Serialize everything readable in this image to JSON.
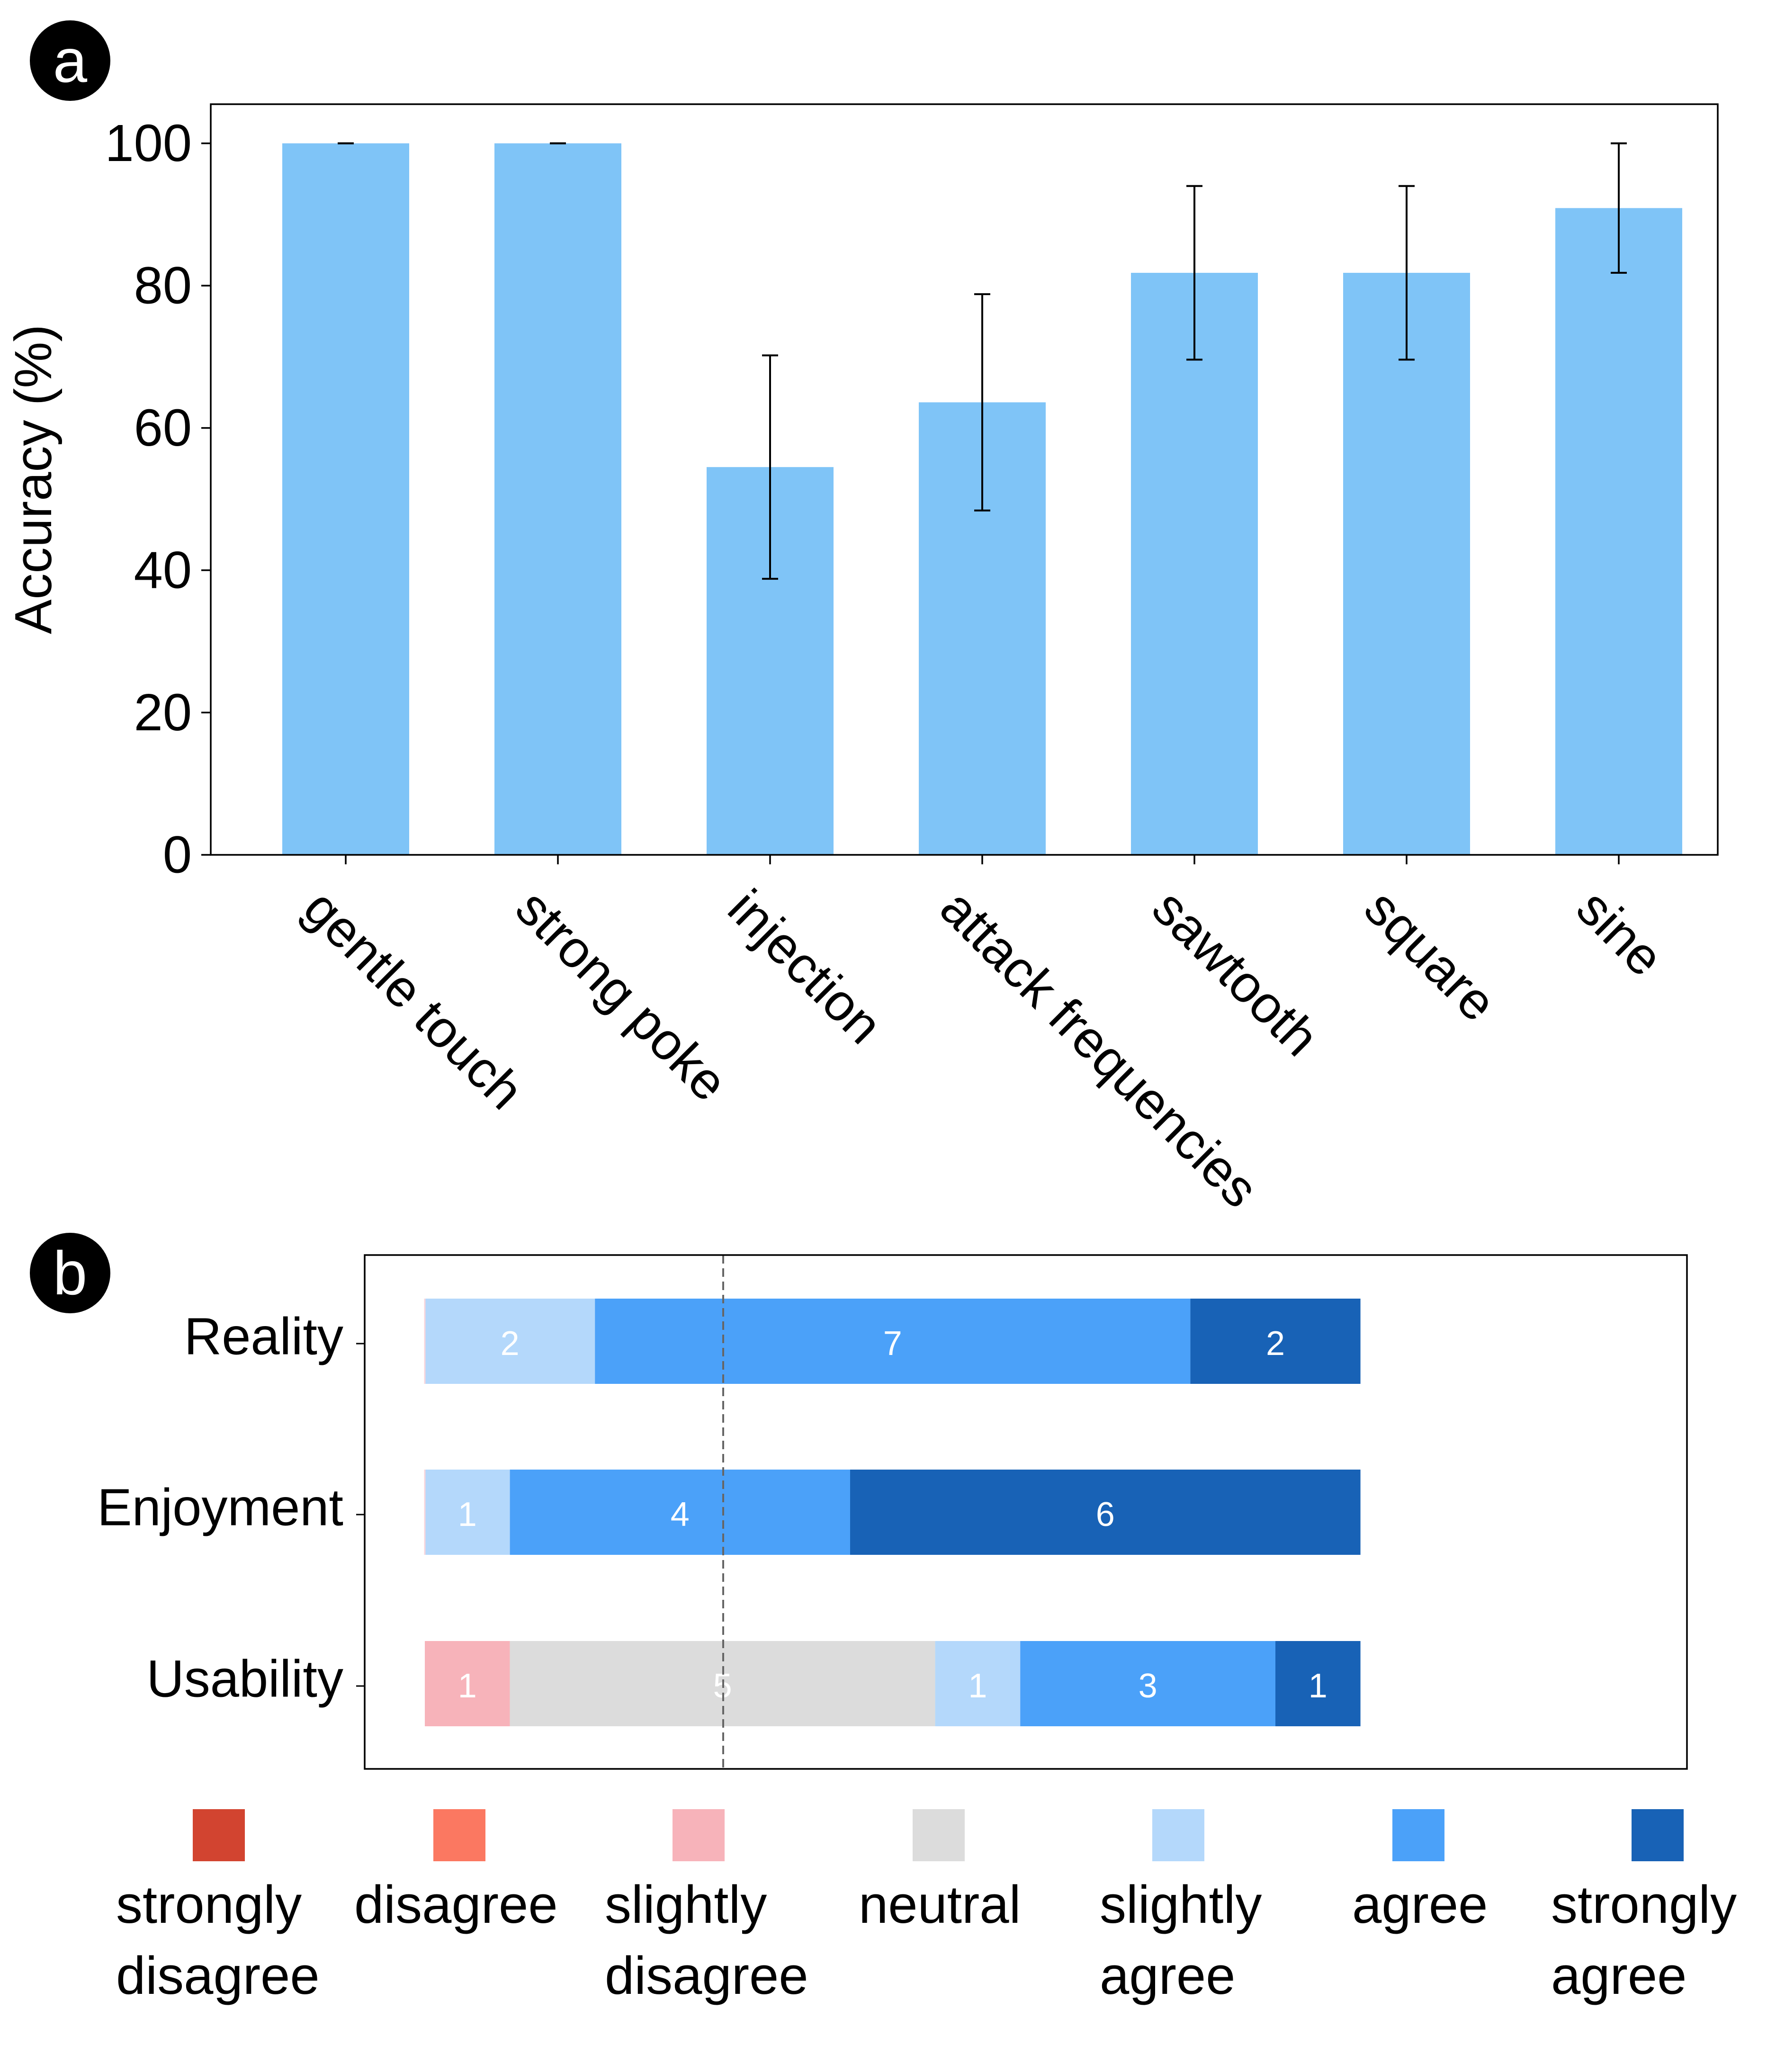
{
  "panels": {
    "a": {
      "label": "a"
    },
    "b": {
      "label": "b"
    }
  },
  "chart_data": [
    {
      "type": "bar",
      "panel": "a",
      "ylabel": "Accuracy (%)",
      "xlabel": "",
      "ylim": [
        0,
        105.5
      ],
      "yticks": [
        0,
        20,
        40,
        60,
        80,
        100
      ],
      "categories": [
        "gentle touch",
        "strong poke",
        "injection",
        "attack frequencies",
        "sawtooth",
        "square",
        "sine"
      ],
      "values": [
        100,
        100,
        54.5,
        63.6,
        81.8,
        81.8,
        90.9
      ],
      "error": [
        0,
        0,
        15.7,
        15.2,
        12.2,
        12.2,
        9.1
      ],
      "color": "#7fc4f7",
      "grid": false
    },
    {
      "type": "bar",
      "orientation": "horizontal-stacked",
      "panel": "b",
      "categories": [
        "Reality",
        "Enjoyment",
        "Usability"
      ],
      "center_line": "neutral midpoint (dashed)",
      "series": [
        {
          "name": "strongly disagree",
          "color": "#d24430",
          "values": [
            0,
            0,
            0
          ]
        },
        {
          "name": "disagree",
          "color": "#fb7861",
          "values": [
            0,
            0,
            0
          ]
        },
        {
          "name": "slightly disagree",
          "color": "#f7b3ba",
          "values": [
            0,
            0,
            1
          ]
        },
        {
          "name": "neutral",
          "color": "#dcdcdc",
          "values": [
            0,
            0,
            5
          ]
        },
        {
          "name": "slightly agree",
          "color": "#b4d8fb",
          "values": [
            2,
            1,
            1
          ]
        },
        {
          "name": "agree",
          "color": "#4ba1f9",
          "values": [
            7,
            4,
            3
          ]
        },
        {
          "name": "strongly agree",
          "color": "#1862b6",
          "values": [
            2,
            6,
            1
          ]
        }
      ],
      "legend": {
        "placement": "bottom",
        "labels": [
          [
            "strongly",
            "disagree"
          ],
          [
            "disagree"
          ],
          [
            "slightly",
            "disagree"
          ],
          [
            "neutral"
          ],
          [
            "slightly",
            "agree"
          ],
          [
            "agree"
          ],
          [
            "strongly",
            "agree"
          ]
        ]
      }
    }
  ]
}
